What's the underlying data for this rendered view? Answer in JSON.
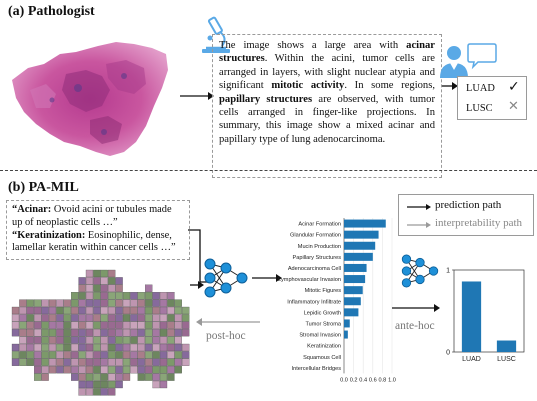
{
  "section_a": {
    "title": "(a) Pathologist",
    "report": [
      {
        "t": "The image shows a large area with ",
        "b": false
      },
      {
        "t": "acinar structures",
        "b": true
      },
      {
        "t": ". Within the acini, tumor cells are arranged in layers, with slight nuclear atypia and significant ",
        "b": false
      },
      {
        "t": "mitotic activity",
        "b": true
      },
      {
        "t": ". In some regions, ",
        "b": false
      },
      {
        "t": "papillary structures",
        "b": true
      },
      {
        "t": " are observed, with tumor cells arranged in finger-like projections. In summary, this image show a mixed acinar and papillary type of lung adenocarcinoma.",
        "b": false
      }
    ],
    "diagnosis": [
      {
        "label": "LUAD",
        "mark": "✓"
      },
      {
        "label": "LUSC",
        "mark": "✕"
      }
    ]
  },
  "section_b": {
    "title": "(b) PA-MIL",
    "descriptors": [
      {
        "term": "“Acinar:",
        "text": " Ovoid acini or tubules made up of neoplastic cells …”"
      },
      {
        "term": "“Keratinization:",
        "text": " Eosinophilic, dense, lamellar keratin within cancer cells …”"
      }
    ],
    "legend": {
      "prediction": "prediction path",
      "interpretability": "interpretability path"
    },
    "post_hoc_label": "post-hoc",
    "ante_hoc_label": "ante-hoc",
    "colors": {
      "bar": "#1f77b4",
      "accent_blue": "#5aa9e6",
      "node": "#1e90d8",
      "grey": "#9a9a9a"
    }
  },
  "chart_data": [
    {
      "type": "bar",
      "orientation": "horizontal",
      "categories": [
        "Acinar Formation",
        "Glandular Formation",
        "Mucin Production",
        "Papillary Structures",
        "Adenocarcinoma Cell",
        "Lymphovascular Invasion",
        "Mitotic Figures",
        "Inflammatory Infiltrate",
        "Lepidic Growth",
        "Tumor Stroma",
        "Stromal Invasion",
        "Keratinization",
        "Squamous Cell",
        "Intercellular Bridges"
      ],
      "values": [
        0.87,
        0.72,
        0.65,
        0.6,
        0.47,
        0.44,
        0.39,
        0.35,
        0.3,
        0.12,
        0.08,
        0.0,
        0.0,
        0.0
      ],
      "xlim": [
        0,
        1.0
      ],
      "xticks": [
        "0.0",
        "0.2",
        "0.4",
        "0.6",
        "0.8",
        "1.0"
      ],
      "grid": true
    },
    {
      "type": "bar",
      "categories": [
        "LUAD",
        "LUSC"
      ],
      "values": [
        0.86,
        0.14
      ],
      "ylim": [
        0,
        1.0
      ],
      "yticks": [
        "0",
        "1"
      ]
    }
  ]
}
